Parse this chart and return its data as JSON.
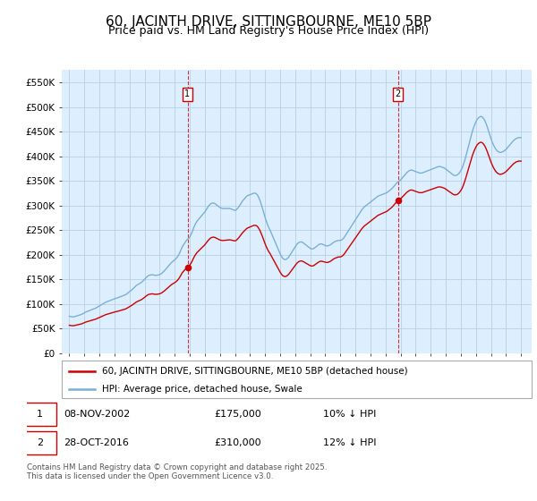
{
  "title": "60, JACINTH DRIVE, SITTINGBOURNE, ME10 5BP",
  "subtitle": "Price paid vs. HM Land Registry's House Price Index (HPI)",
  "ylim": [
    0,
    575000
  ],
  "yticks": [
    0,
    50000,
    100000,
    150000,
    200000,
    250000,
    300000,
    350000,
    400000,
    450000,
    500000,
    550000
  ],
  "ytick_labels": [
    "£0",
    "£50K",
    "£100K",
    "£150K",
    "£200K",
    "£250K",
    "£300K",
    "£350K",
    "£400K",
    "£450K",
    "£500K",
    "£550K"
  ],
  "background_color": "#ffffff",
  "plot_bg_color": "#ddeeff",
  "grid_color": "#b8cfe8",
  "red_line_color": "#cc0000",
  "blue_line_color": "#7ab0d4",
  "legend_entry1": "60, JACINTH DRIVE, SITTINGBOURNE, ME10 5BP (detached house)",
  "legend_entry2": "HPI: Average price, detached house, Swale",
  "footer": "Contains HM Land Registry data © Crown copyright and database right 2025.\nThis data is licensed under the Open Government Licence v3.0.",
  "title_fontsize": 11,
  "subtitle_fontsize": 9,
  "tick_fontsize": 7.5,
  "sale_markers": [
    {
      "year": 2002.85,
      "value": 175000,
      "label": "1"
    },
    {
      "year": 2016.83,
      "value": 310000,
      "label": "2"
    }
  ],
  "hpi_monthly_years": [
    1995.0,
    1995.083,
    1995.167,
    1995.25,
    1995.333,
    1995.417,
    1995.5,
    1995.583,
    1995.667,
    1995.75,
    1995.833,
    1995.917,
    1996.0,
    1996.083,
    1996.167,
    1996.25,
    1996.333,
    1996.417,
    1996.5,
    1996.583,
    1996.667,
    1996.75,
    1996.833,
    1996.917,
    1997.0,
    1997.083,
    1997.167,
    1997.25,
    1997.333,
    1997.417,
    1997.5,
    1997.583,
    1997.667,
    1997.75,
    1997.833,
    1997.917,
    1998.0,
    1998.083,
    1998.167,
    1998.25,
    1998.333,
    1998.417,
    1998.5,
    1998.583,
    1998.667,
    1998.75,
    1998.833,
    1998.917,
    1999.0,
    1999.083,
    1999.167,
    1999.25,
    1999.333,
    1999.417,
    1999.5,
    1999.583,
    1999.667,
    1999.75,
    1999.833,
    1999.917,
    2000.0,
    2000.083,
    2000.167,
    2000.25,
    2000.333,
    2000.417,
    2000.5,
    2000.583,
    2000.667,
    2000.75,
    2000.833,
    2000.917,
    2001.0,
    2001.083,
    2001.167,
    2001.25,
    2001.333,
    2001.417,
    2001.5,
    2001.583,
    2001.667,
    2001.75,
    2001.833,
    2001.917,
    2002.0,
    2002.083,
    2002.167,
    2002.25,
    2002.333,
    2002.417,
    2002.5,
    2002.583,
    2002.667,
    2002.75,
    2002.833,
    2002.917,
    2003.0,
    2003.083,
    2003.167,
    2003.25,
    2003.333,
    2003.417,
    2003.5,
    2003.583,
    2003.667,
    2003.75,
    2003.833,
    2003.917,
    2004.0,
    2004.083,
    2004.167,
    2004.25,
    2004.333,
    2004.417,
    2004.5,
    2004.583,
    2004.667,
    2004.75,
    2004.833,
    2004.917,
    2005.0,
    2005.083,
    2005.167,
    2005.25,
    2005.333,
    2005.417,
    2005.5,
    2005.583,
    2005.667,
    2005.75,
    2005.833,
    2005.917,
    2006.0,
    2006.083,
    2006.167,
    2006.25,
    2006.333,
    2006.417,
    2006.5,
    2006.583,
    2006.667,
    2006.75,
    2006.833,
    2006.917,
    2007.0,
    2007.083,
    2007.167,
    2007.25,
    2007.333,
    2007.417,
    2007.5,
    2007.583,
    2007.667,
    2007.75,
    2007.833,
    2007.917,
    2008.0,
    2008.083,
    2008.167,
    2008.25,
    2008.333,
    2008.417,
    2008.5,
    2008.583,
    2008.667,
    2008.75,
    2008.833,
    2008.917,
    2009.0,
    2009.083,
    2009.167,
    2009.25,
    2009.333,
    2009.417,
    2009.5,
    2009.583,
    2009.667,
    2009.75,
    2009.833,
    2009.917,
    2010.0,
    2010.083,
    2010.167,
    2010.25,
    2010.333,
    2010.417,
    2010.5,
    2010.583,
    2010.667,
    2010.75,
    2010.833,
    2010.917,
    2011.0,
    2011.083,
    2011.167,
    2011.25,
    2011.333,
    2011.417,
    2011.5,
    2011.583,
    2011.667,
    2011.75,
    2011.833,
    2011.917,
    2012.0,
    2012.083,
    2012.167,
    2012.25,
    2012.333,
    2012.417,
    2012.5,
    2012.583,
    2012.667,
    2012.75,
    2012.833,
    2012.917,
    2013.0,
    2013.083,
    2013.167,
    2013.25,
    2013.333,
    2013.417,
    2013.5,
    2013.583,
    2013.667,
    2013.75,
    2013.833,
    2013.917,
    2014.0,
    2014.083,
    2014.167,
    2014.25,
    2014.333,
    2014.417,
    2014.5,
    2014.583,
    2014.667,
    2014.75,
    2014.833,
    2014.917,
    2015.0,
    2015.083,
    2015.167,
    2015.25,
    2015.333,
    2015.417,
    2015.5,
    2015.583,
    2015.667,
    2015.75,
    2015.833,
    2015.917,
    2016.0,
    2016.083,
    2016.167,
    2016.25,
    2016.333,
    2016.417,
    2016.5,
    2016.583,
    2016.667,
    2016.75,
    2016.833,
    2016.917,
    2017.0,
    2017.083,
    2017.167,
    2017.25,
    2017.333,
    2017.417,
    2017.5,
    2017.583,
    2017.667,
    2017.75,
    2017.833,
    2017.917,
    2018.0,
    2018.083,
    2018.167,
    2018.25,
    2018.333,
    2018.417,
    2018.5,
    2018.583,
    2018.667,
    2018.75,
    2018.833,
    2018.917,
    2019.0,
    2019.083,
    2019.167,
    2019.25,
    2019.333,
    2019.417,
    2019.5,
    2019.583,
    2019.667,
    2019.75,
    2019.833,
    2019.917,
    2020.0,
    2020.083,
    2020.167,
    2020.25,
    2020.333,
    2020.417,
    2020.5,
    2020.583,
    2020.667,
    2020.75,
    2020.833,
    2020.917,
    2021.0,
    2021.083,
    2021.167,
    2021.25,
    2021.333,
    2021.417,
    2021.5,
    2021.583,
    2021.667,
    2021.75,
    2021.833,
    2021.917,
    2022.0,
    2022.083,
    2022.167,
    2022.25,
    2022.333,
    2022.417,
    2022.5,
    2022.583,
    2022.667,
    2022.75,
    2022.833,
    2022.917,
    2023.0,
    2023.083,
    2023.167,
    2023.25,
    2023.333,
    2023.417,
    2023.5,
    2023.583,
    2023.667,
    2023.75,
    2023.833,
    2023.917,
    2024.0,
    2024.083,
    2024.167,
    2024.25,
    2024.333,
    2024.417,
    2024.5,
    2024.583,
    2024.667,
    2024.75,
    2024.833,
    2024.917,
    2025.0
  ],
  "hpi_monthly_values": [
    75000,
    74500,
    74000,
    73800,
    74200,
    75000,
    75800,
    76500,
    77200,
    78000,
    79000,
    80500,
    82000,
    83500,
    84500,
    85500,
    86500,
    87500,
    88500,
    89500,
    90500,
    91500,
    93000,
    94500,
    96000,
    97500,
    99000,
    100500,
    102000,
    103500,
    104500,
    105500,
    106500,
    107500,
    108500,
    109500,
    110500,
    111500,
    112000,
    113000,
    114000,
    115000,
    116000,
    117000,
    118000,
    119000,
    121000,
    123000,
    125000,
    127000,
    129000,
    131500,
    134000,
    136500,
    138500,
    140000,
    141500,
    143000,
    145000,
    147500,
    150000,
    153000,
    155500,
    157500,
    158500,
    159000,
    159500,
    159000,
    158500,
    158000,
    158500,
    159000,
    159500,
    161000,
    163000,
    165500,
    168000,
    171000,
    174000,
    177000,
    180000,
    183000,
    185500,
    187500,
    189500,
    192000,
    195000,
    199000,
    204000,
    210000,
    216000,
    220000,
    224000,
    228000,
    231000,
    233000,
    236000,
    241000,
    247000,
    254000,
    260000,
    265000,
    269000,
    272000,
    275000,
    278000,
    281000,
    284000,
    287000,
    291000,
    295000,
    299000,
    302000,
    304000,
    305000,
    305000,
    304000,
    302000,
    300000,
    298000,
    296000,
    295000,
    294000,
    294000,
    294000,
    294000,
    294000,
    294000,
    294000,
    293000,
    292000,
    291000,
    290000,
    291000,
    294000,
    297000,
    301000,
    305000,
    309000,
    312000,
    315000,
    318000,
    320000,
    321000,
    322000,
    323000,
    324000,
    325000,
    325000,
    324000,
    321000,
    316000,
    310000,
    302000,
    294000,
    285000,
    276000,
    268000,
    261000,
    255000,
    250000,
    244000,
    238000,
    232000,
    226000,
    220000,
    214000,
    208000,
    202000,
    197000,
    193000,
    191000,
    190000,
    191000,
    193000,
    196000,
    200000,
    204000,
    208000,
    212000,
    216000,
    220000,
    223000,
    225000,
    226000,
    226000,
    225000,
    223000,
    221000,
    219000,
    217000,
    215000,
    213000,
    212000,
    212000,
    213000,
    215000,
    217000,
    219000,
    221000,
    222000,
    222000,
    221000,
    220000,
    219000,
    218000,
    218000,
    219000,
    220000,
    222000,
    224000,
    226000,
    227000,
    228000,
    229000,
    229000,
    229000,
    230000,
    232000,
    235000,
    239000,
    243000,
    247000,
    251000,
    255000,
    259000,
    263000,
    267000,
    271000,
    275000,
    279000,
    283000,
    287000,
    291000,
    294000,
    297000,
    299000,
    301000,
    303000,
    305000,
    307000,
    309000,
    311000,
    313000,
    315000,
    317000,
    319000,
    320000,
    321000,
    322000,
    323000,
    324000,
    325000,
    326000,
    328000,
    330000,
    332000,
    334000,
    337000,
    340000,
    343000,
    346000,
    348000,
    350000,
    352000,
    355000,
    358000,
    361000,
    364000,
    367000,
    369000,
    371000,
    372000,
    372000,
    371000,
    370000,
    369000,
    368000,
    367000,
    366000,
    366000,
    366000,
    367000,
    368000,
    369000,
    370000,
    371000,
    372000,
    373000,
    374000,
    375000,
    376000,
    377000,
    378000,
    379000,
    379000,
    379000,
    378000,
    377000,
    376000,
    374000,
    372000,
    370000,
    368000,
    366000,
    364000,
    362000,
    361000,
    361000,
    362000,
    364000,
    367000,
    371000,
    376000,
    383000,
    391000,
    400000,
    410000,
    420000,
    430000,
    440000,
    449000,
    457000,
    464000,
    470000,
    475000,
    478000,
    480000,
    481000,
    480000,
    477000,
    473000,
    467000,
    460000,
    452000,
    444000,
    436000,
    429000,
    423000,
    418000,
    414000,
    411000,
    409000,
    408000,
    408000,
    409000,
    410000,
    412000,
    414000,
    417000,
    420000,
    423000,
    426000,
    429000,
    432000,
    434000,
    436000,
    437000,
    438000,
    438000,
    438000
  ]
}
